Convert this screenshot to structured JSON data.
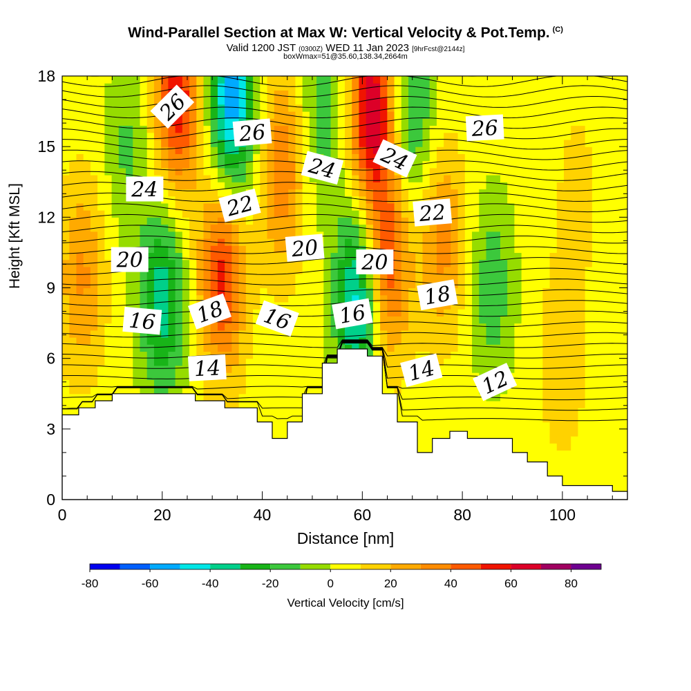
{
  "header": {
    "title": "Wind-Parallel Section at Max W: Vertical Velocity & Pot.Temp.",
    "copyright": "(C)",
    "valid_prefix": "Valid 1200 JST",
    "valid_utc": "(0300Z)",
    "valid_date": "WED 11 Jan 2023",
    "forecast": "[9hrFcst@2144z]",
    "box_info": "boxWmax=51@35.60,138.34,2664m"
  },
  "colorbar": {
    "label": "Vertical Velocity [cm/s]",
    "ticks": [
      "-80",
      "-60",
      "-40",
      "-20",
      "0",
      "20",
      "40",
      "60",
      "80"
    ],
    "colors": [
      "#0000ee",
      "#005fff",
      "#00aaff",
      "#00e6e6",
      "#00d08a",
      "#18b418",
      "#3cc83c",
      "#96dc00",
      "#ffff00",
      "#ffd200",
      "#ffaa00",
      "#ff8c00",
      "#ff5a00",
      "#f01400",
      "#dc0028",
      "#a00060",
      "#6e0090"
    ]
  },
  "chart_data": {
    "type": "heatmap",
    "title": "Wind-Parallel Section at Max W: Vertical Velocity & Pot.Temp.",
    "xlabel": "Distance [nm]",
    "ylabel": "Height [Kft MSL]",
    "xlim": [
      0,
      113
    ],
    "ylim": [
      0,
      18
    ],
    "x_ticks": [
      "0",
      "20",
      "40",
      "60",
      "80",
      "100"
    ],
    "y_ticks": [
      "0",
      "3",
      "6",
      "9",
      "12",
      "15",
      "18"
    ],
    "x_tick_values": [
      0,
      20,
      40,
      60,
      80,
      100
    ],
    "y_tick_values": [
      0,
      3,
      6,
      9,
      12,
      15,
      18
    ],
    "colorbar_values": [
      -80,
      -70,
      -60,
      -50,
      -40,
      -30,
      -20,
      -10,
      0,
      10,
      20,
      30,
      40,
      50,
      60,
      70,
      80,
      90
    ],
    "terrain": {
      "x": [
        0,
        3.3,
        3.3,
        6.6,
        6.6,
        10,
        10,
        26.6,
        26.6,
        32.5,
        32.5,
        39,
        39,
        42,
        42,
        45,
        45,
        48,
        48,
        52,
        52,
        55,
        55,
        61,
        61,
        64,
        64,
        67,
        67,
        71,
        71,
        74,
        74,
        77.5,
        77.5,
        81,
        81,
        90,
        90,
        93,
        93,
        97,
        97,
        100,
        100,
        110,
        110,
        113
      ],
      "y": [
        3.6,
        3.6,
        3.9,
        3.9,
        4.2,
        4.2,
        4.5,
        4.5,
        4.2,
        4.2,
        3.9,
        3.9,
        3.3,
        3.3,
        2.6,
        2.6,
        3.3,
        3.3,
        4.5,
        4.5,
        5.8,
        5.8,
        6.4,
        6.4,
        6.1,
        6.1,
        4.5,
        4.5,
        3.3,
        3.3,
        2.0,
        2.0,
        2.6,
        2.6,
        2.9,
        2.9,
        2.6,
        2.6,
        2.0,
        2.0,
        1.6,
        1.6,
        1.0,
        1.0,
        0.6,
        0.6,
        0.35,
        0.35
      ]
    },
    "vertical_velocity_cells": [
      {
        "x": 4,
        "y": 9.5,
        "w": 28
      },
      {
        "x": 20,
        "y": 8.5,
        "w": -40
      },
      {
        "x": 32,
        "y": 9.5,
        "w": 50
      },
      {
        "x": 23,
        "y": 17,
        "w": 55
      },
      {
        "x": 34,
        "y": 17,
        "w": -60
      },
      {
        "x": 44,
        "y": 14,
        "w": 35
      },
      {
        "x": 52,
        "y": 16.5,
        "w": -20
      },
      {
        "x": 59,
        "y": 8.5,
        "w": -50
      },
      {
        "x": 62,
        "y": 16.5,
        "w": 65
      },
      {
        "x": 65,
        "y": 10,
        "w": 45
      },
      {
        "x": 70,
        "y": 16.5,
        "w": -25
      },
      {
        "x": 76,
        "y": 11,
        "w": 30
      },
      {
        "x": 86,
        "y": 9,
        "w": -20
      },
      {
        "x": 100,
        "y": 6,
        "w": 15
      },
      {
        "x": 103,
        "y": 13,
        "w": 10
      },
      {
        "x": 13,
        "y": 15,
        "w": -15
      }
    ],
    "theta_contour_labels": [
      {
        "text": "26",
        "x": 22,
        "y": 16.7,
        "angle": -45
      },
      {
        "text": "26",
        "x": 38,
        "y": 15.6,
        "angle": -5
      },
      {
        "text": "26",
        "x": 84.5,
        "y": 15.8,
        "angle": -3
      },
      {
        "text": "24",
        "x": 16.5,
        "y": 13.2,
        "angle": 0
      },
      {
        "text": "24",
        "x": 52,
        "y": 14.1,
        "angle": 15
      },
      {
        "text": "24",
        "x": 66.5,
        "y": 14.5,
        "angle": 25
      },
      {
        "text": "22",
        "x": 35.5,
        "y": 12.5,
        "angle": -15
      },
      {
        "text": "22",
        "x": 74,
        "y": 12.2,
        "angle": -5
      },
      {
        "text": "20",
        "x": 13.5,
        "y": 10.2,
        "angle": 0
      },
      {
        "text": "20",
        "x": 48.5,
        "y": 10.7,
        "angle": -5
      },
      {
        "text": "20",
        "x": 62.5,
        "y": 10.1,
        "angle": 0
      },
      {
        "text": "18",
        "x": 29.5,
        "y": 8.0,
        "angle": -20
      },
      {
        "text": "18",
        "x": 75,
        "y": 8.7,
        "angle": -10
      },
      {
        "text": "16",
        "x": 16,
        "y": 7.6,
        "angle": 5
      },
      {
        "text": "16",
        "x": 43,
        "y": 7.7,
        "angle": 20
      },
      {
        "text": "16",
        "x": 58,
        "y": 7.9,
        "angle": -10
      },
      {
        "text": "14",
        "x": 29,
        "y": 5.6,
        "angle": -3
      },
      {
        "text": "14",
        "x": 71.8,
        "y": 5.5,
        "angle": -15
      },
      {
        "text": "12",
        "x": 86.5,
        "y": 5.0,
        "angle": -25
      }
    ]
  }
}
